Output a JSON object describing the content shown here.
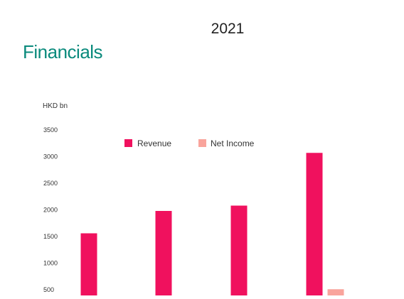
{
  "header": {
    "year": "2021",
    "section_title": "Financials"
  },
  "colors": {
    "title": "#0a8a7c",
    "revenue": "#f0115e",
    "net_income": "#f9a49c",
    "axis_text": "#333333"
  },
  "chart_data": {
    "type": "bar",
    "title": "",
    "xlabel": "",
    "ylabel": "HKD bn",
    "ylim": [
      500,
      3500
    ],
    "yticks": [
      "500",
      "1000",
      "1500",
      "2000",
      "2500",
      "3000",
      "3500"
    ],
    "categories": [
      "",
      "",
      "",
      ""
    ],
    "series": [
      {
        "name": "Revenue",
        "values": [
          1560,
          1980,
          2080,
          3070
        ]
      },
      {
        "name": "Net Income",
        "values": [
          null,
          null,
          null,
          510
        ]
      }
    ],
    "legend": "top",
    "grid": false
  }
}
